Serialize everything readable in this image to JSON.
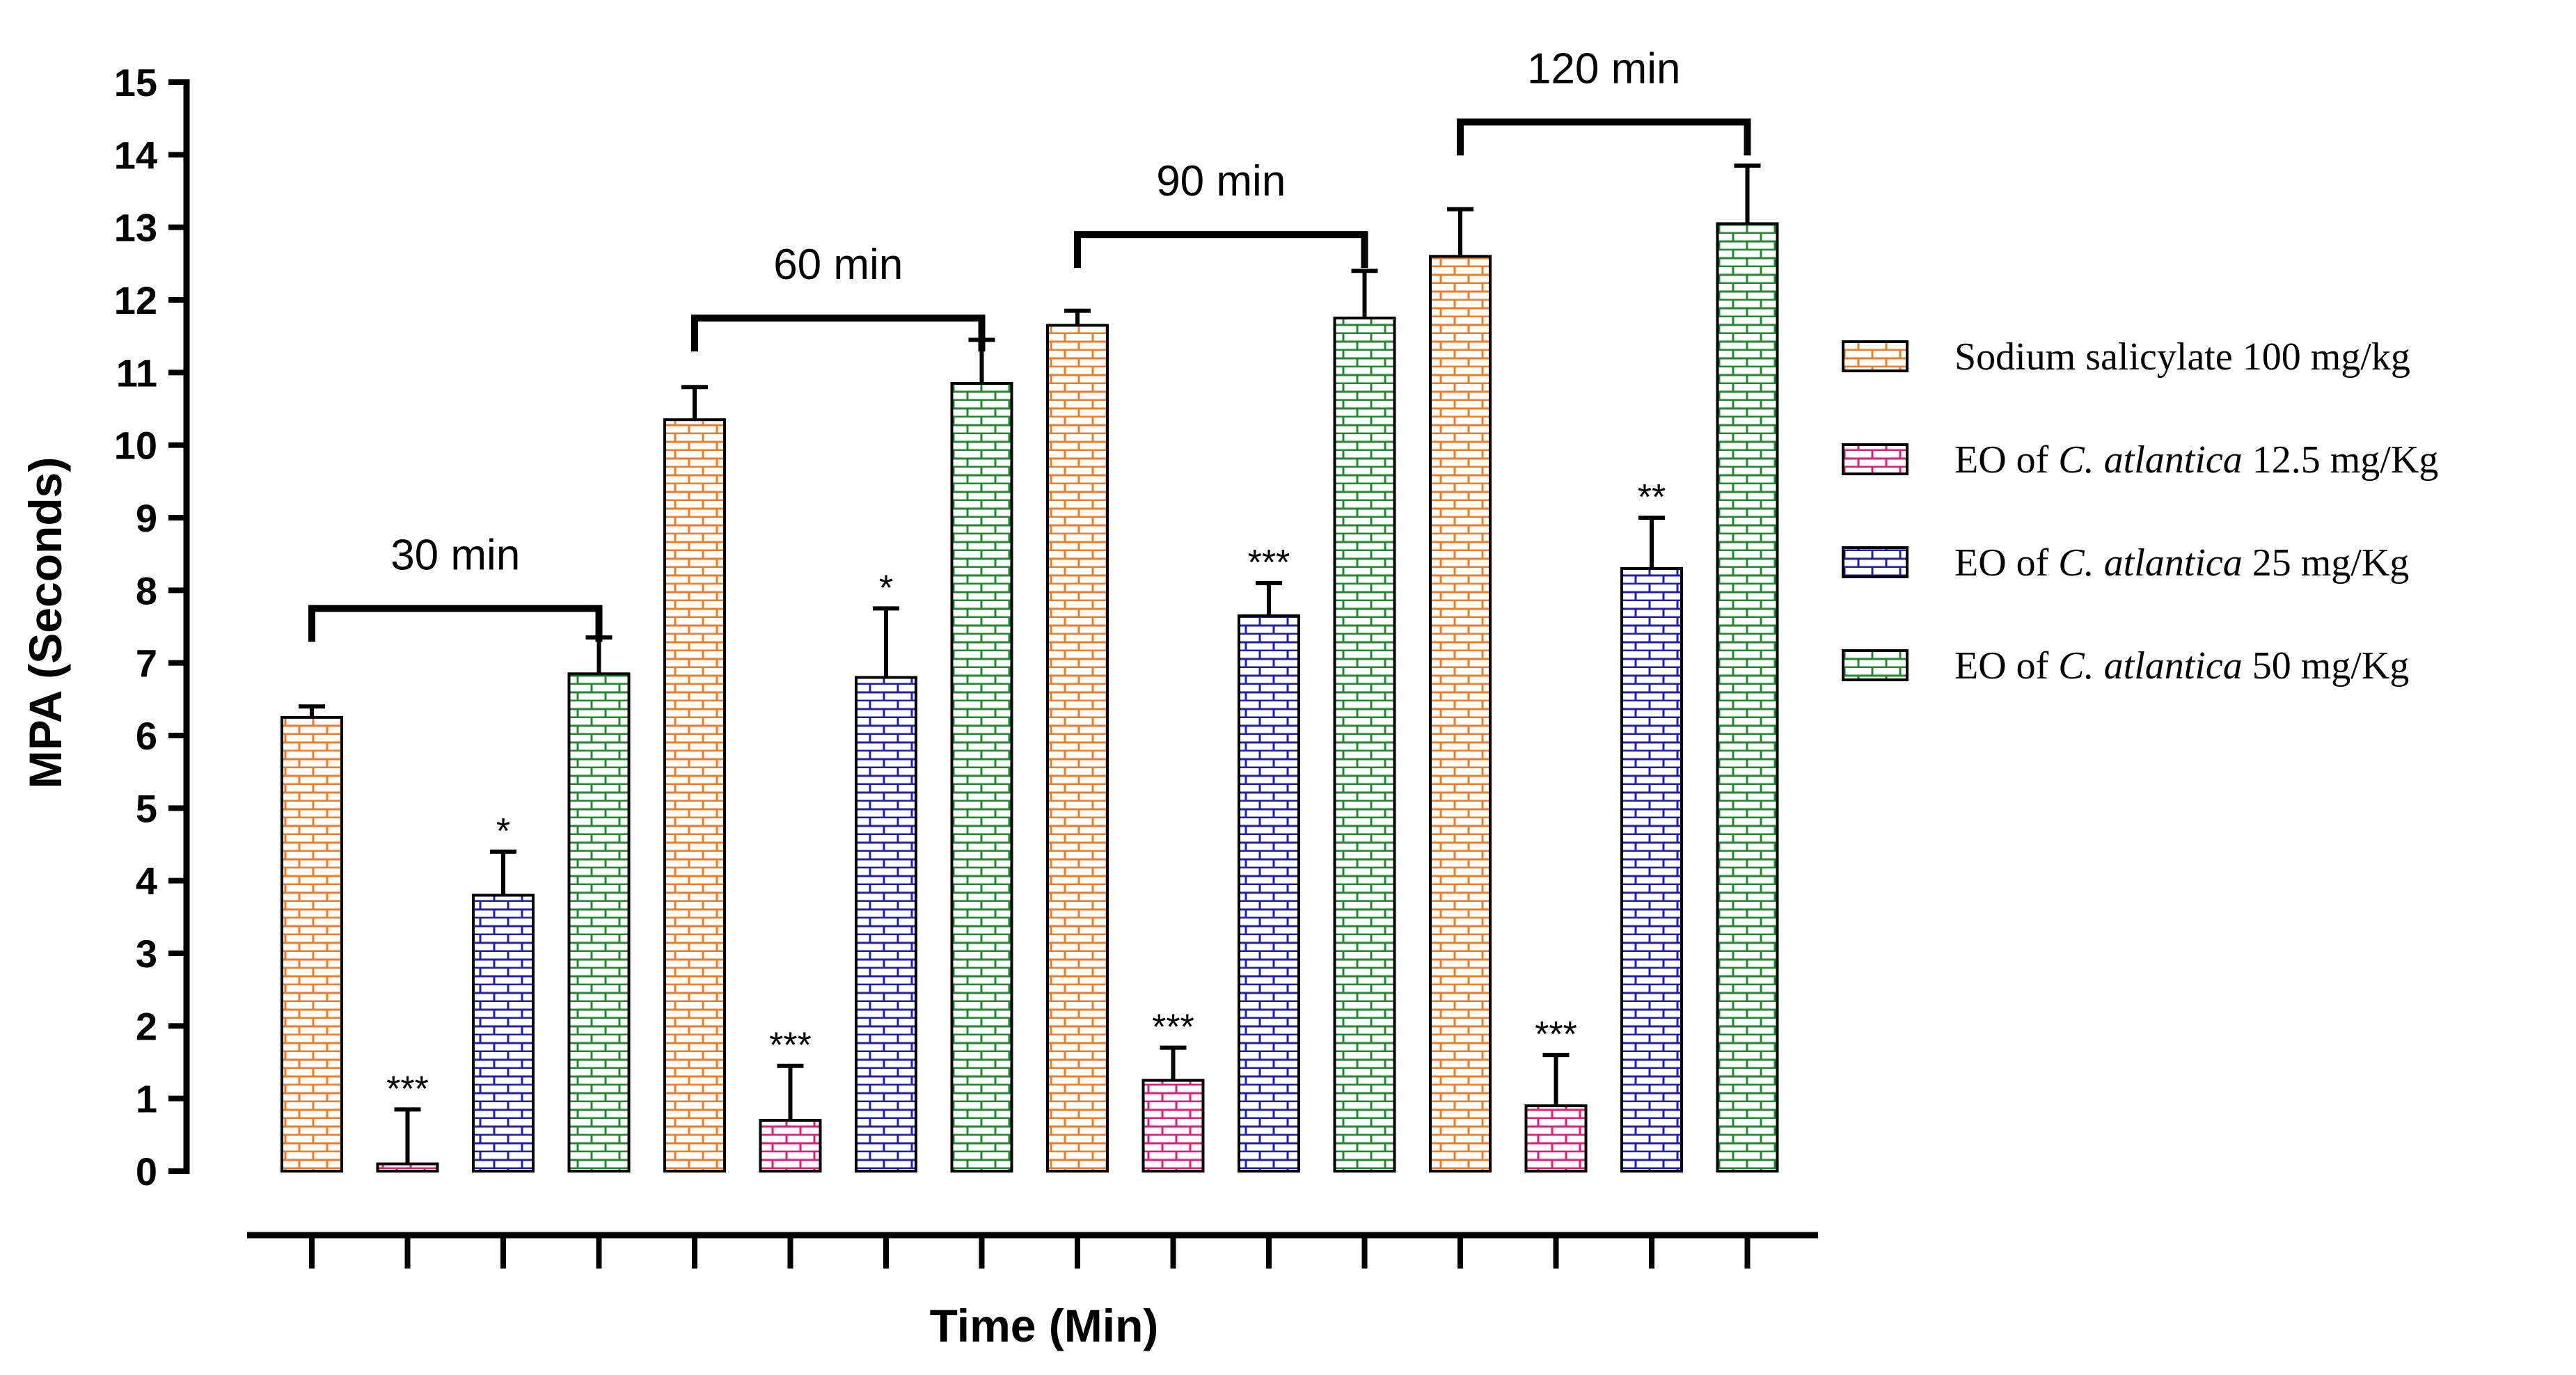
{
  "chart_data": {
    "type": "bar",
    "ylabel": "MPA (Seconds)",
    "xlabel": "Time (Min)",
    "ylim": [
      0,
      15
    ],
    "yticks": [
      0,
      1,
      2,
      3,
      4,
      5,
      6,
      7,
      8,
      9,
      10,
      11,
      12,
      13,
      14,
      15
    ],
    "groups": [
      "30 min",
      "60 min",
      "90 min",
      "120 min"
    ],
    "series": [
      {
        "name": "Sodium salicylate 100 mg/kg",
        "legend": {
          "pre": "Sodium salicylate 100 mg/kg",
          "italic": "",
          "post": ""
        },
        "color": "#f07b20",
        "values": [
          6.25,
          10.35,
          11.65,
          12.6
        ],
        "errors": [
          0.15,
          0.45,
          0.2,
          0.65
        ],
        "significance": [
          "",
          "",
          "",
          ""
        ]
      },
      {
        "name": "EO of C. atlantica 12.5 mg/Kg",
        "legend": {
          "pre": "EO of ",
          "italic": "C. atlantica",
          "post": " 12.5 mg/Kg"
        },
        "color": "#e6197f",
        "values": [
          0.1,
          0.7,
          1.25,
          0.9
        ],
        "errors": [
          0.75,
          0.75,
          0.45,
          0.7
        ],
        "significance": [
          "***",
          "***",
          "***",
          "***"
        ]
      },
      {
        "name": "EO of C. atlantica 25 mg/Kg",
        "legend": {
          "pre": "EO of ",
          "italic": "C. atlantica",
          "post": " 25 mg/Kg"
        },
        "color": "#1f1fb4",
        "values": [
          3.8,
          6.8,
          7.65,
          8.3
        ],
        "errors": [
          0.6,
          0.95,
          0.45,
          0.7
        ],
        "significance": [
          "*",
          "*",
          "***",
          "**"
        ]
      },
      {
        "name": "EO of C. atlantica 50 mg/Kg",
        "legend": {
          "pre": "EO of ",
          "italic": "C. atlantica",
          "post": " 50 mg/Kg"
        },
        "color": "#1e8a2e",
        "values": [
          6.85,
          10.85,
          11.75,
          13.05
        ],
        "errors": [
          0.5,
          0.6,
          0.65,
          0.8
        ],
        "significance": [
          "",
          "",
          "",
          ""
        ]
      }
    ],
    "grid": false,
    "legend_position": "right"
  }
}
